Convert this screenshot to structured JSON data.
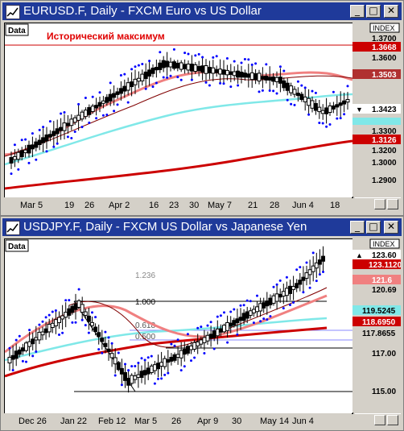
{
  "windows": [
    {
      "title": "EURUSD.F, Daily - FXCM Euro vs US Dollar",
      "data_button": "Data",
      "index_label": "INDEX",
      "annotation": "Исторический максимум",
      "price_ticks": [
        "1.3700",
        "1.3668",
        "1.3600",
        "1.3503",
        "1.3423",
        "1.3300",
        "1.3200",
        "1.3126",
        "1.3000",
        "1.2900"
      ],
      "date_ticks": [
        "Mar 5",
        "19",
        "26",
        "Apr 2",
        "16",
        "23",
        "30",
        "May 7",
        "21",
        "28",
        "Jun 4",
        "18"
      ],
      "colors": {
        "ma_red": "#cc0000",
        "ma_pink": "#f08080",
        "ma_cyan": "#80e8e8",
        "ma_darkred": "#800000",
        "sar": "#0000ff",
        "candle": "#000000"
      }
    },
    {
      "title": "USDJPY.F, Daily - FXCM US Dollar vs Japanese Yen",
      "data_button": "Data",
      "index_label": "INDEX",
      "fib_labels": [
        "1.236",
        "1.000",
        "0.618",
        "0.500"
      ],
      "price_ticks": [
        "123.60",
        "123.1120",
        "121.6",
        "120.69",
        "119.5245",
        "118.6950",
        "117.8655",
        "117.00",
        "115.00"
      ],
      "date_ticks": [
        "Dec 26",
        "Jan 22",
        "Feb 12",
        "Mar 5",
        "26",
        "Apr 9",
        "30",
        "May 14",
        "Jun 4"
      ]
    }
  ]
}
